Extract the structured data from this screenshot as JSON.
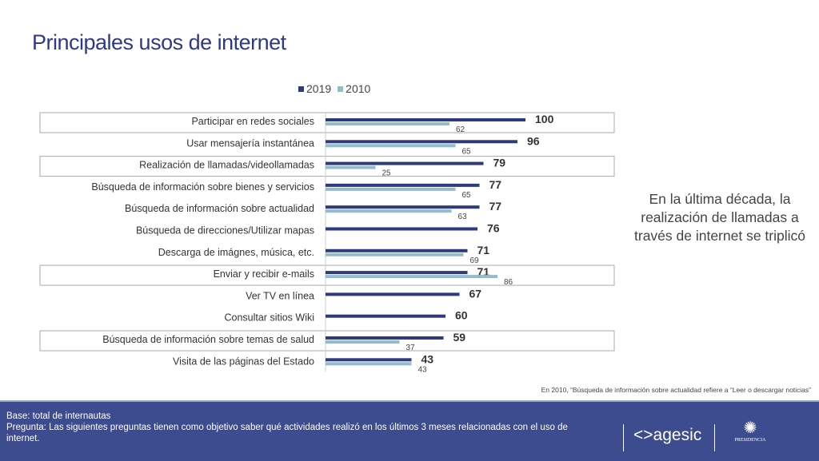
{
  "title": "Principales usos de internet",
  "chart_data": {
    "type": "bar",
    "orientation": "horizontal",
    "categories": [
      "Participar en redes sociales",
      "Usar mensajería instantánea",
      "Realización de llamadas/videollamadas",
      "Búsqueda de información sobre bienes y servicios",
      "Búsqueda de información sobre actualidad",
      "Búsqueda de direcciones/Utilizar mapas",
      "Descarga de imágnes, música, etc.",
      "Enviar y recibir e-mails",
      "Ver TV en línea",
      "Consultar sitios Wiki",
      "Búsqueda de información sobre temas de salud",
      "Visita de las páginas del Estado"
    ],
    "series": [
      {
        "name": "2019",
        "color": "#2e3a7c",
        "values": [
          100,
          96,
          79,
          77,
          77,
          76,
          71,
          71,
          67,
          60,
          59,
          43
        ]
      },
      {
        "name": "2010",
        "color": "#93bccb",
        "values": [
          62,
          65,
          25,
          65,
          63,
          null,
          69,
          86,
          null,
          null,
          37,
          43
        ]
      }
    ],
    "highlighted": [
      0,
      2,
      7,
      10
    ],
    "xlim": [
      0,
      100
    ],
    "legend": "top"
  },
  "callout": "En la última década, la realización de llamadas a través de internet se triplicó",
  "note": "En 2010, “Búsqueda de información sobre actualidad refiere a “Leer o descargar noticias”",
  "footer": {
    "base": "Base: total de internautas",
    "pregunta": "Pregunta: Las siguientes preguntas tienen como objetivo saber qué actividades realizó en los últimos 3 meses relacionadas con el uso de internet.",
    "logo": "<>agesic",
    "logo2": "PRESIDENCIA"
  }
}
